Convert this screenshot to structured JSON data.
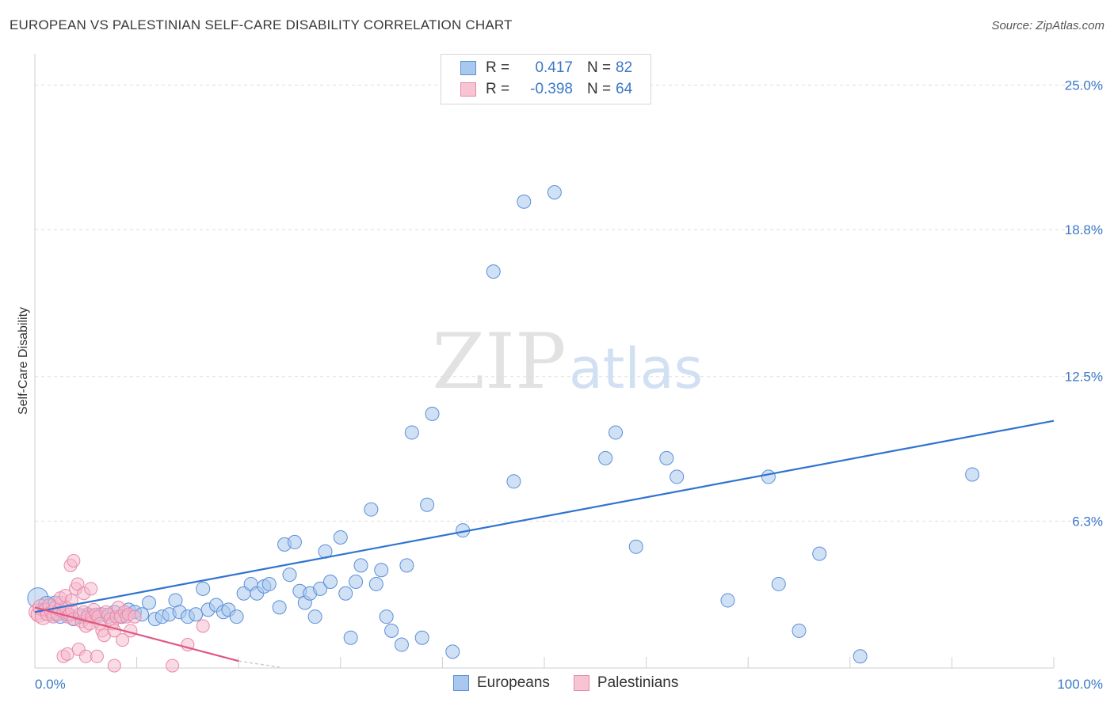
{
  "title": "EUROPEAN VS PALESTINIAN SELF-CARE DISABILITY CORRELATION CHART",
  "source": "Source: ZipAtlas.com",
  "watermark": {
    "zip": "ZIP",
    "atlas": "atlas"
  },
  "legend": {
    "rows": [
      {
        "r_label": "R =",
        "r_value": "0.417",
        "n_label": "N =",
        "n_value": "82"
      },
      {
        "r_label": "R =",
        "r_value": "-0.398",
        "n_label": "N =",
        "n_value": "64"
      }
    ]
  },
  "bottom_legend": [
    "Europeans",
    "Palestinians"
  ],
  "colors": {
    "european_fill": "#a9c8ef",
    "european_stroke": "#5b8fd6",
    "european_line": "#2f74d0",
    "palestinian_fill": "#f6b8cb",
    "palestinian_stroke": "#e889a8",
    "palestinian_line": "#e0577f",
    "tick_label": "#3b78c7",
    "grid": "#dddddd"
  },
  "chart_data": {
    "type": "scatter",
    "title": "EUROPEAN VS PALESTINIAN SELF-CARE DISABILITY CORRELATION CHART",
    "xlabel": "",
    "ylabel": "Self-Care Disability",
    "xlim": [
      0,
      100
    ],
    "ylim": [
      0,
      26
    ],
    "x_tick_labels": [
      "0.0%",
      "100.0%"
    ],
    "y_ticks": [
      6.3,
      12.5,
      18.8,
      25.0
    ],
    "y_tick_labels": [
      "6.3%",
      "12.5%",
      "18.8%",
      "25.0%"
    ],
    "series": [
      {
        "name": "Europeans",
        "r": 0.417,
        "n": 82,
        "trend": {
          "x": [
            0,
            100
          ],
          "y": [
            2.4,
            10.6
          ]
        },
        "points": [
          [
            0.3,
            3.0
          ],
          [
            0.8,
            2.5
          ],
          [
            1.2,
            2.7
          ],
          [
            1.8,
            2.3
          ],
          [
            2.5,
            2.2
          ],
          [
            3.2,
            2.3
          ],
          [
            3.8,
            2.1
          ],
          [
            4.5,
            2.2
          ],
          [
            5.2,
            2.3
          ],
          [
            5.8,
            2.2
          ],
          [
            6.5,
            2.3
          ],
          [
            7.2,
            2.2
          ],
          [
            7.8,
            2.4
          ],
          [
            8.5,
            2.2
          ],
          [
            9.2,
            2.5
          ],
          [
            9.8,
            2.4
          ],
          [
            10.5,
            2.3
          ],
          [
            11.2,
            2.8
          ],
          [
            11.8,
            2.1
          ],
          [
            12.5,
            2.2
          ],
          [
            13.2,
            2.3
          ],
          [
            13.8,
            2.9
          ],
          [
            14.2,
            2.4
          ],
          [
            15.0,
            2.2
          ],
          [
            15.8,
            2.3
          ],
          [
            16.5,
            3.4
          ],
          [
            17.0,
            2.5
          ],
          [
            17.8,
            2.7
          ],
          [
            18.5,
            2.4
          ],
          [
            19.0,
            2.5
          ],
          [
            19.8,
            2.2
          ],
          [
            20.5,
            3.2
          ],
          [
            21.2,
            3.6
          ],
          [
            21.8,
            3.2
          ],
          [
            22.5,
            3.5
          ],
          [
            23.0,
            3.6
          ],
          [
            24.0,
            2.6
          ],
          [
            24.5,
            5.3
          ],
          [
            25.0,
            4.0
          ],
          [
            25.5,
            5.4
          ],
          [
            26.0,
            3.3
          ],
          [
            26.5,
            2.8
          ],
          [
            27.0,
            3.2
          ],
          [
            27.5,
            2.2
          ],
          [
            28.0,
            3.4
          ],
          [
            28.5,
            5.0
          ],
          [
            29.0,
            3.7
          ],
          [
            30.0,
            5.6
          ],
          [
            30.5,
            3.2
          ],
          [
            31.0,
            1.3
          ],
          [
            31.5,
            3.7
          ],
          [
            32.0,
            4.4
          ],
          [
            33.0,
            6.8
          ],
          [
            33.5,
            3.6
          ],
          [
            34.0,
            4.2
          ],
          [
            34.5,
            2.2
          ],
          [
            35.0,
            1.6
          ],
          [
            36.0,
            1.0
          ],
          [
            36.5,
            4.4
          ],
          [
            37.0,
            10.1
          ],
          [
            38.0,
            1.3
          ],
          [
            38.5,
            7.0
          ],
          [
            39.0,
            10.9
          ],
          [
            41.0,
            0.7
          ],
          [
            42.0,
            5.9
          ],
          [
            45.0,
            17.0
          ],
          [
            47.0,
            8.0
          ],
          [
            48.0,
            20.0
          ],
          [
            51.0,
            20.4
          ],
          [
            56.0,
            9.0
          ],
          [
            57.0,
            10.1
          ],
          [
            59.0,
            5.2
          ],
          [
            62.0,
            9.0
          ],
          [
            63.0,
            8.2
          ],
          [
            68.0,
            2.9
          ],
          [
            72.0,
            8.2
          ],
          [
            73.0,
            3.6
          ],
          [
            75.0,
            1.6
          ],
          [
            77.0,
            4.9
          ],
          [
            81.0,
            0.5
          ],
          [
            92.0,
            8.3
          ],
          [
            2.0,
            2.8
          ]
        ]
      },
      {
        "name": "Palestinians",
        "r": -0.398,
        "n": 64,
        "trend": {
          "x": [
            0,
            20
          ],
          "y": [
            2.6,
            0.3
          ]
        },
        "trend_dashed": {
          "x": [
            20,
            24
          ],
          "y": [
            0.3,
            -0.15
          ]
        },
        "points": [
          [
            0.2,
            2.4
          ],
          [
            0.4,
            2.3
          ],
          [
            0.6,
            2.6
          ],
          [
            0.8,
            2.2
          ],
          [
            1.0,
            2.5
          ],
          [
            1.2,
            2.3
          ],
          [
            1.4,
            2.7
          ],
          [
            1.6,
            2.4
          ],
          [
            1.8,
            2.2
          ],
          [
            2.0,
            2.6
          ],
          [
            2.2,
            2.3
          ],
          [
            2.4,
            2.5
          ],
          [
            2.6,
            2.8
          ],
          [
            2.8,
            2.4
          ],
          [
            3.0,
            2.6
          ],
          [
            3.2,
            2.2
          ],
          [
            3.4,
            2.3
          ],
          [
            3.6,
            2.5
          ],
          [
            3.8,
            2.1
          ],
          [
            4.0,
            3.4
          ],
          [
            4.2,
            3.6
          ],
          [
            4.4,
            2.3
          ],
          [
            4.6,
            2.0
          ],
          [
            4.8,
            2.4
          ],
          [
            5.0,
            1.8
          ],
          [
            5.2,
            2.2
          ],
          [
            5.4,
            1.9
          ],
          [
            5.6,
            2.2
          ],
          [
            5.8,
            2.5
          ],
          [
            6.0,
            2.3
          ],
          [
            6.2,
            2.2
          ],
          [
            6.4,
            1.9
          ],
          [
            6.6,
            1.6
          ],
          [
            6.8,
            1.4
          ],
          [
            7.0,
            2.4
          ],
          [
            7.2,
            2.3
          ],
          [
            7.4,
            2.1
          ],
          [
            7.6,
            1.9
          ],
          [
            7.8,
            1.6
          ],
          [
            8.0,
            2.2
          ],
          [
            8.2,
            2.6
          ],
          [
            8.4,
            2.2
          ],
          [
            8.6,
            1.2
          ],
          [
            8.8,
            2.4
          ],
          [
            9.0,
            2.2
          ],
          [
            9.2,
            2.3
          ],
          [
            9.4,
            1.6
          ],
          [
            9.8,
            2.2
          ],
          [
            3.5,
            4.4
          ],
          [
            3.8,
            4.6
          ],
          [
            4.8,
            3.2
          ],
          [
            5.5,
            3.4
          ],
          [
            2.5,
            3.0
          ],
          [
            3.0,
            3.1
          ],
          [
            2.8,
            0.5
          ],
          [
            3.2,
            0.6
          ],
          [
            4.3,
            0.8
          ],
          [
            5.0,
            0.5
          ],
          [
            6.1,
            0.5
          ],
          [
            7.8,
            0.1
          ],
          [
            13.5,
            0.1
          ],
          [
            15.0,
            1.0
          ],
          [
            16.5,
            1.8
          ],
          [
            3.6,
            2.9
          ]
        ]
      }
    ]
  }
}
